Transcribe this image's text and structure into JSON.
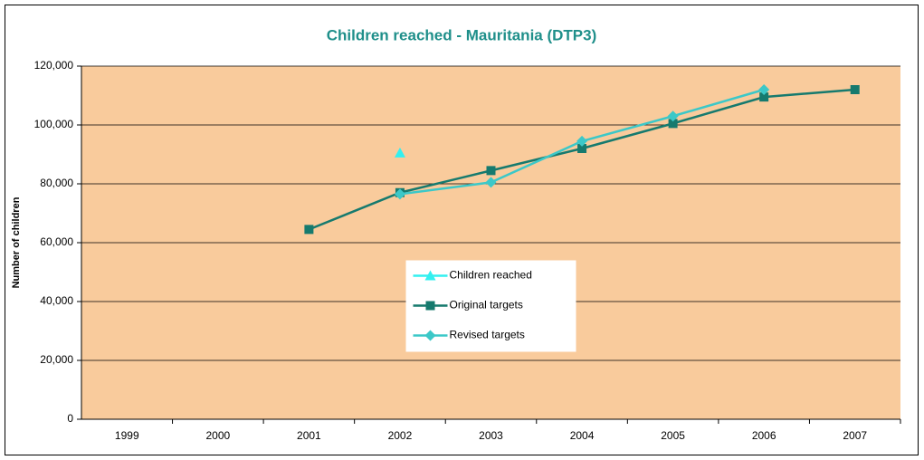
{
  "chart_data": {
    "type": "line",
    "title": "Children reached - Mauritania (DTP3)",
    "ylabel": "Number of children",
    "categories": [
      "1999",
      "2000",
      "2001",
      "2002",
      "2003",
      "2004",
      "2005",
      "2006",
      "2007"
    ],
    "series": [
      {
        "name": "Children reached",
        "color": "#33f0f0",
        "marker": "triangle",
        "values": [
          null,
          null,
          null,
          90500,
          null,
          null,
          null,
          null,
          null
        ]
      },
      {
        "name": "Original targets",
        "color": "#167a6e",
        "marker": "square",
        "values": [
          null,
          null,
          64500,
          77000,
          84500,
          92000,
          100500,
          109500,
          112000
        ]
      },
      {
        "name": "Revised targets",
        "color": "#3cc8c8",
        "marker": "diamond",
        "values": [
          null,
          null,
          null,
          76500,
          80500,
          94500,
          103000,
          112000,
          null
        ]
      }
    ],
    "ylim": [
      0,
      120000
    ],
    "yticks": [
      0,
      {
        "value": 20000,
        "label": "20,000"
      },
      {
        "value": 40000,
        "label": "40,000"
      },
      {
        "value": 60000,
        "label": "60,000"
      },
      {
        "value": 80000,
        "label": "80,000"
      },
      {
        "value": 100000,
        "label": "100,000"
      },
      {
        "value": 120000,
        "label": "120,000"
      }
    ],
    "grid": true,
    "legend": "center",
    "plot_background": "#f9cb9c"
  }
}
